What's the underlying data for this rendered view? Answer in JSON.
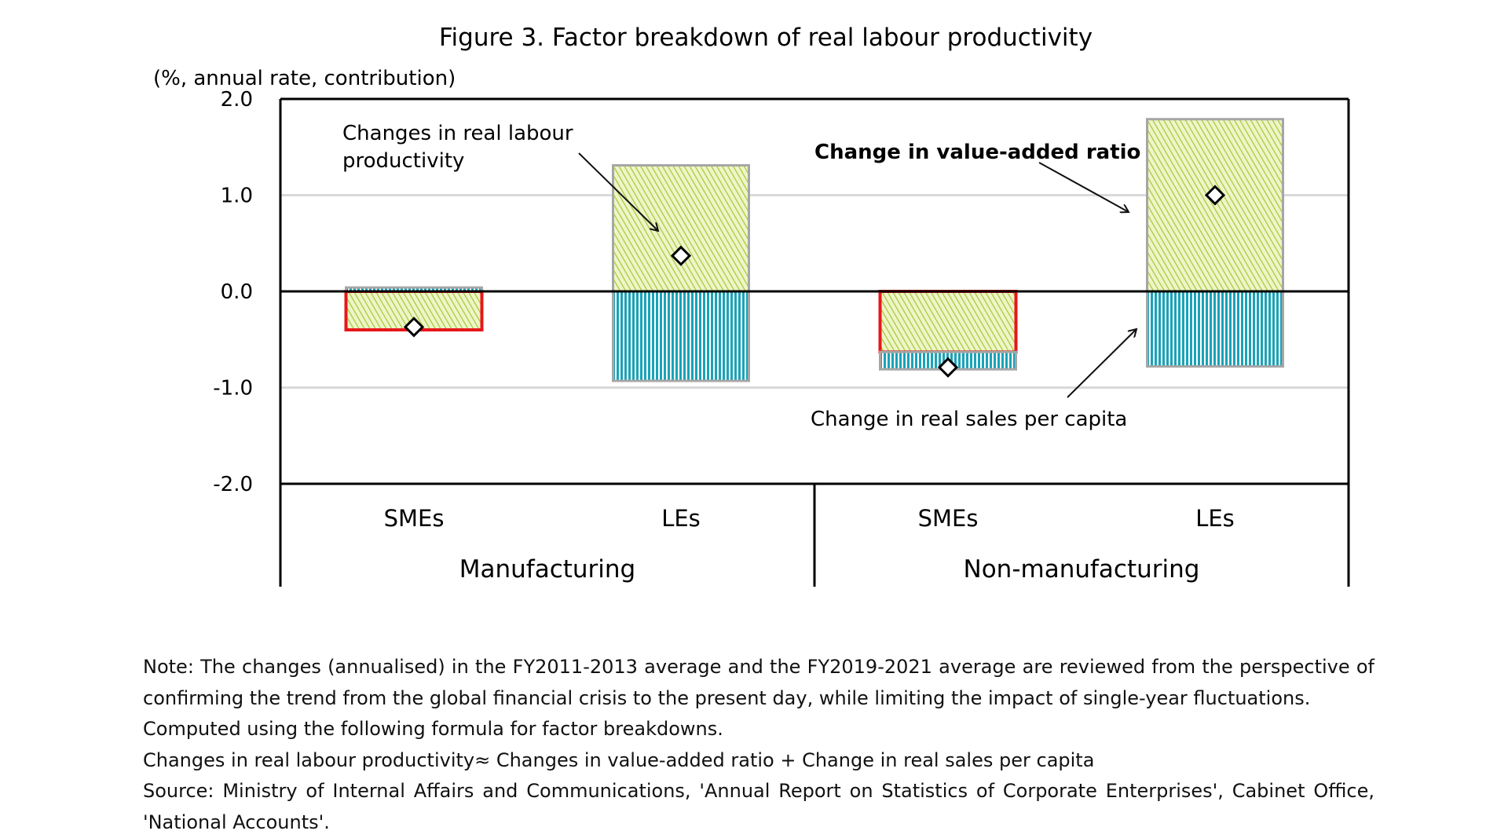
{
  "chart_data": {
    "type": "bar",
    "stacked": true,
    "title": "Figure 3. Factor breakdown of real labour productivity",
    "ylabel": "(%, annual rate, contribution)",
    "ylim": [
      -2.0,
      2.0
    ],
    "yticks": [
      "2.0",
      "1.0",
      "0.0",
      "-1.0",
      "-2.0"
    ],
    "ytick_values": [
      2,
      1,
      0,
      -1,
      -2
    ],
    "grid": true,
    "categories": [
      "SMEs",
      "LEs",
      "SMEs",
      "LEs"
    ],
    "groups": [
      {
        "label": "Manufacturing",
        "categories": [
          0,
          1
        ]
      },
      {
        "label": "Non-manufacturing",
        "categories": [
          2,
          3
        ]
      }
    ],
    "series": [
      {
        "name": "Change in value-added ratio",
        "kind": "bar",
        "pattern": "diagonal-hatch",
        "color": "#a8c83a",
        "values": [
          -0.4,
          1.31,
          -0.63,
          1.79
        ]
      },
      {
        "name": "Change in real sales per capita",
        "kind": "bar",
        "pattern": "vertical-stripe",
        "color": "#1aa3b8",
        "values": [
          0.04,
          -0.93,
          -0.18,
          -0.78
        ]
      },
      {
        "name": "Changes in real labour productivity",
        "kind": "marker",
        "marker": "diamond",
        "values": [
          -0.37,
          0.37,
          -0.79,
          1.0
        ]
      }
    ],
    "highlighted_categories": [
      0,
      2
    ],
    "highlight_color": "#e8161b",
    "annotations": [
      {
        "text_lines": [
          "Changes in real labour",
          "productivity"
        ],
        "bold": false
      },
      {
        "text_lines": [
          "Change in value-added ratio"
        ],
        "bold": true
      },
      {
        "text_lines": [
          "Change in real sales per capita"
        ],
        "bold": false
      }
    ]
  },
  "notes": [
    "Note: The changes (annualised) in the FY2011-2013 average and the FY2019-2021 average are reviewed from the perspective of",
    "confirming the trend from the global financial crisis to the present day, while limiting the impact of single-year fluctuations.",
    "Computed using the following formula for factor breakdowns.",
    "Changes in real labour productivity≈ Changes in value-added ratio + Change in real sales per capita",
    "Source: Ministry of Internal Affairs and Communications, 'Annual Report on Statistics of Corporate Enterprises', Cabinet Office,",
    "'National Accounts'."
  ]
}
